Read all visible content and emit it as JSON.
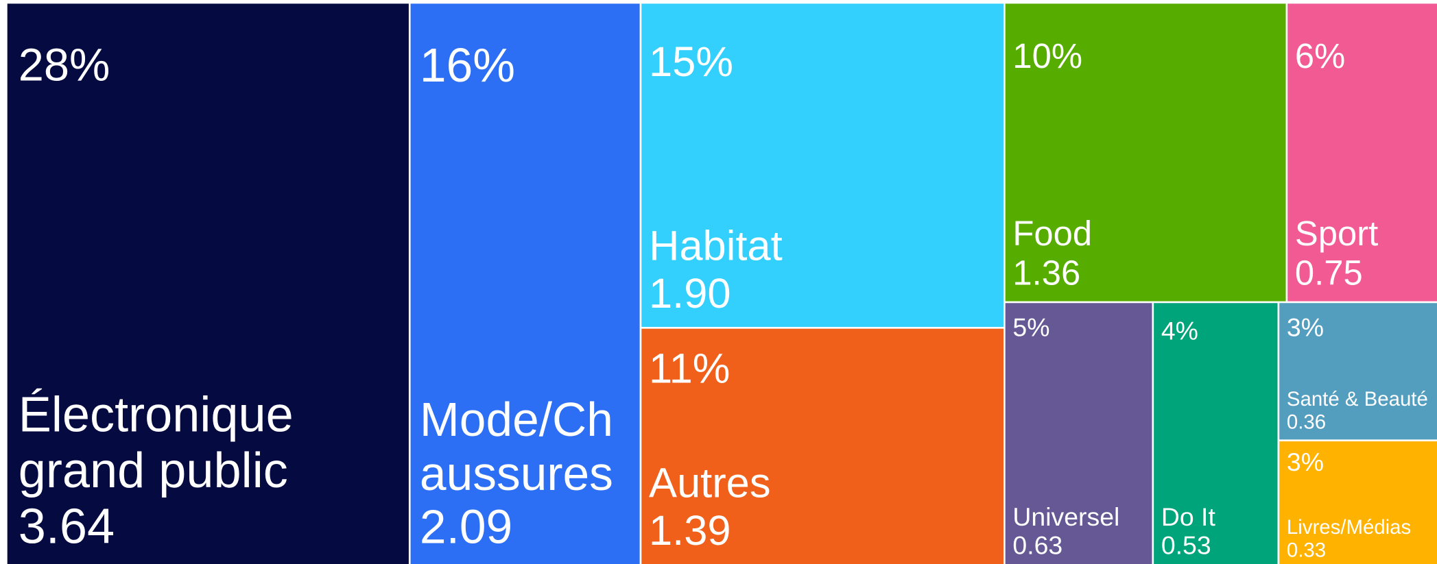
{
  "chart_data": {
    "type": "treemap",
    "categories": [
      "Électronique grand public",
      "Mode/Chaussures",
      "Habitat",
      "Autres",
      "Food",
      "Sport",
      "Universel",
      "Do It",
      "Santé & Beauté",
      "Livres/Médias"
    ],
    "values": [
      3.64,
      2.09,
      1.9,
      1.39,
      1.36,
      0.75,
      0.63,
      0.53,
      0.36,
      0.33
    ],
    "value_labels": [
      "3.64",
      "2.09",
      "1.90",
      "1.39",
      "1.36",
      "0.75",
      "0.63",
      "0.53",
      "0.36",
      "0.33"
    ],
    "percent_labels": [
      "28%",
      "16%",
      "15%",
      "11%",
      "10%",
      "6%",
      "5%",
      "4%",
      "3%",
      "3%"
    ],
    "colors": [
      "#050a40",
      "#2d6ff4",
      "#33d0fe",
      "#f0601a",
      "#56ad00",
      "#f15a93",
      "#665894",
      "#00a47a",
      "#539ebf",
      "#ffb200"
    ]
  }
}
